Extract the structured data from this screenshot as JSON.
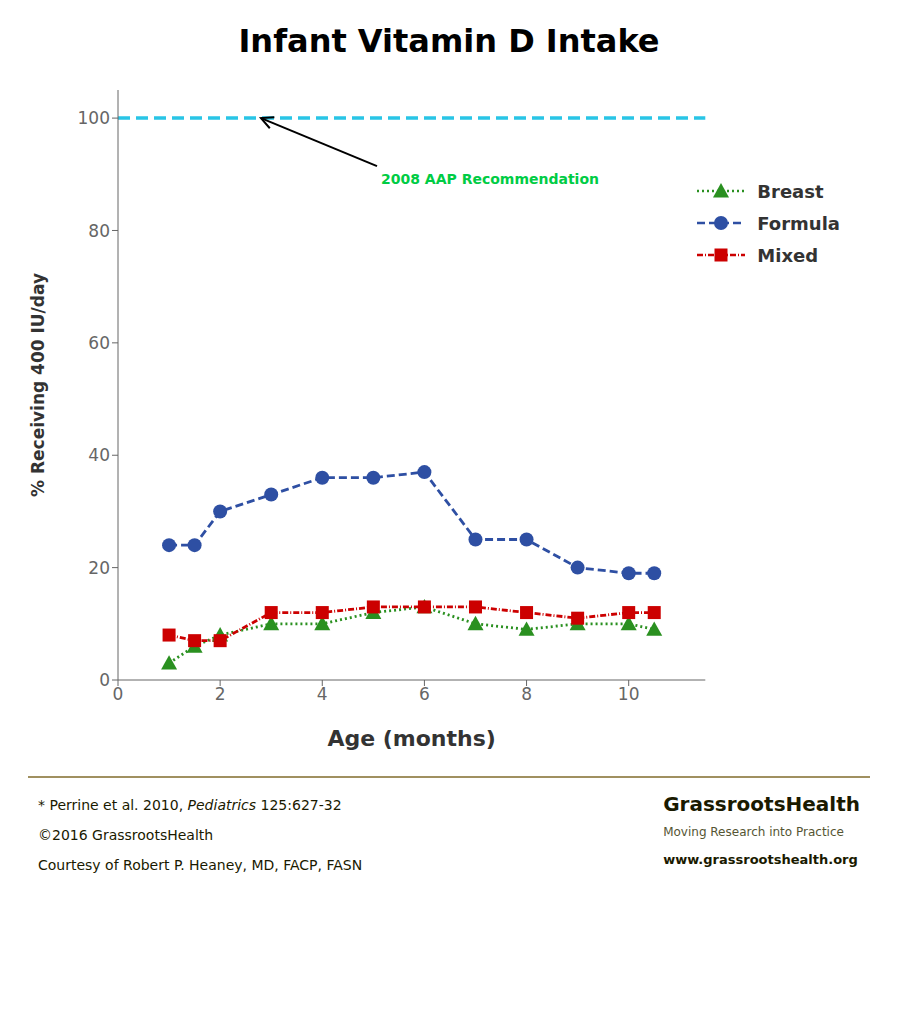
{
  "chart_data": {
    "type": "line",
    "title": "Infant Vitamin D Intake",
    "x_label": "Age (months)",
    "y_label": "% Receiving 400 IU/day",
    "x": [
      1,
      1.5,
      2,
      3,
      4,
      5,
      6,
      7,
      8,
      9,
      10,
      10.5
    ],
    "series": [
      {
        "name": "Breast",
        "color": "#2A9020",
        "marker": "triangle",
        "line_style": "dotted",
        "values": [
          3,
          6,
          8,
          10,
          10,
          12,
          13,
          10,
          9,
          10,
          10,
          9
        ]
      },
      {
        "name": "Formula",
        "color": "#2E4FA3",
        "marker": "circle",
        "line_style": "dashed",
        "values": [
          24,
          24,
          30,
          33,
          36,
          36,
          37,
          25,
          25,
          20,
          19,
          19
        ]
      },
      {
        "name": "Mixed",
        "color": "#CC0000",
        "marker": "square",
        "line_style": "dashdot",
        "values": [
          8,
          7,
          7,
          12,
          12,
          13,
          13,
          13,
          12,
          11,
          12,
          12
        ]
      }
    ],
    "hlines": [
      {
        "y": 100,
        "color": "#29C5E6",
        "line_style": "dashed"
      }
    ],
    "annotations": [
      {
        "text": "2008 AAP Recommendation",
        "x": 2.8,
        "y": 100,
        "color": "#00CC44"
      }
    ],
    "xlim": [
      0,
      11.5
    ],
    "ylim": [
      0,
      105
    ],
    "xticks": [
      0,
      2,
      4,
      6,
      8,
      10
    ],
    "yticks": [
      0,
      20,
      40,
      60,
      80,
      100
    ],
    "grid": false,
    "legend": "upper right",
    "footer": [
      [
        "* Perrine et al. 2010, ",
        "Pediatrics",
        " 125:627-32"
      ],
      [
        "©2016 GrassrootsHealth"
      ],
      [
        "Courtesy of Robert P. Heaney, MD, FACP, FASN"
      ]
    ],
    "footer_right": [
      "GrassrootsHealth",
      "Moving Research into Practice",
      "www.grassrootshealth.org"
    ]
  }
}
